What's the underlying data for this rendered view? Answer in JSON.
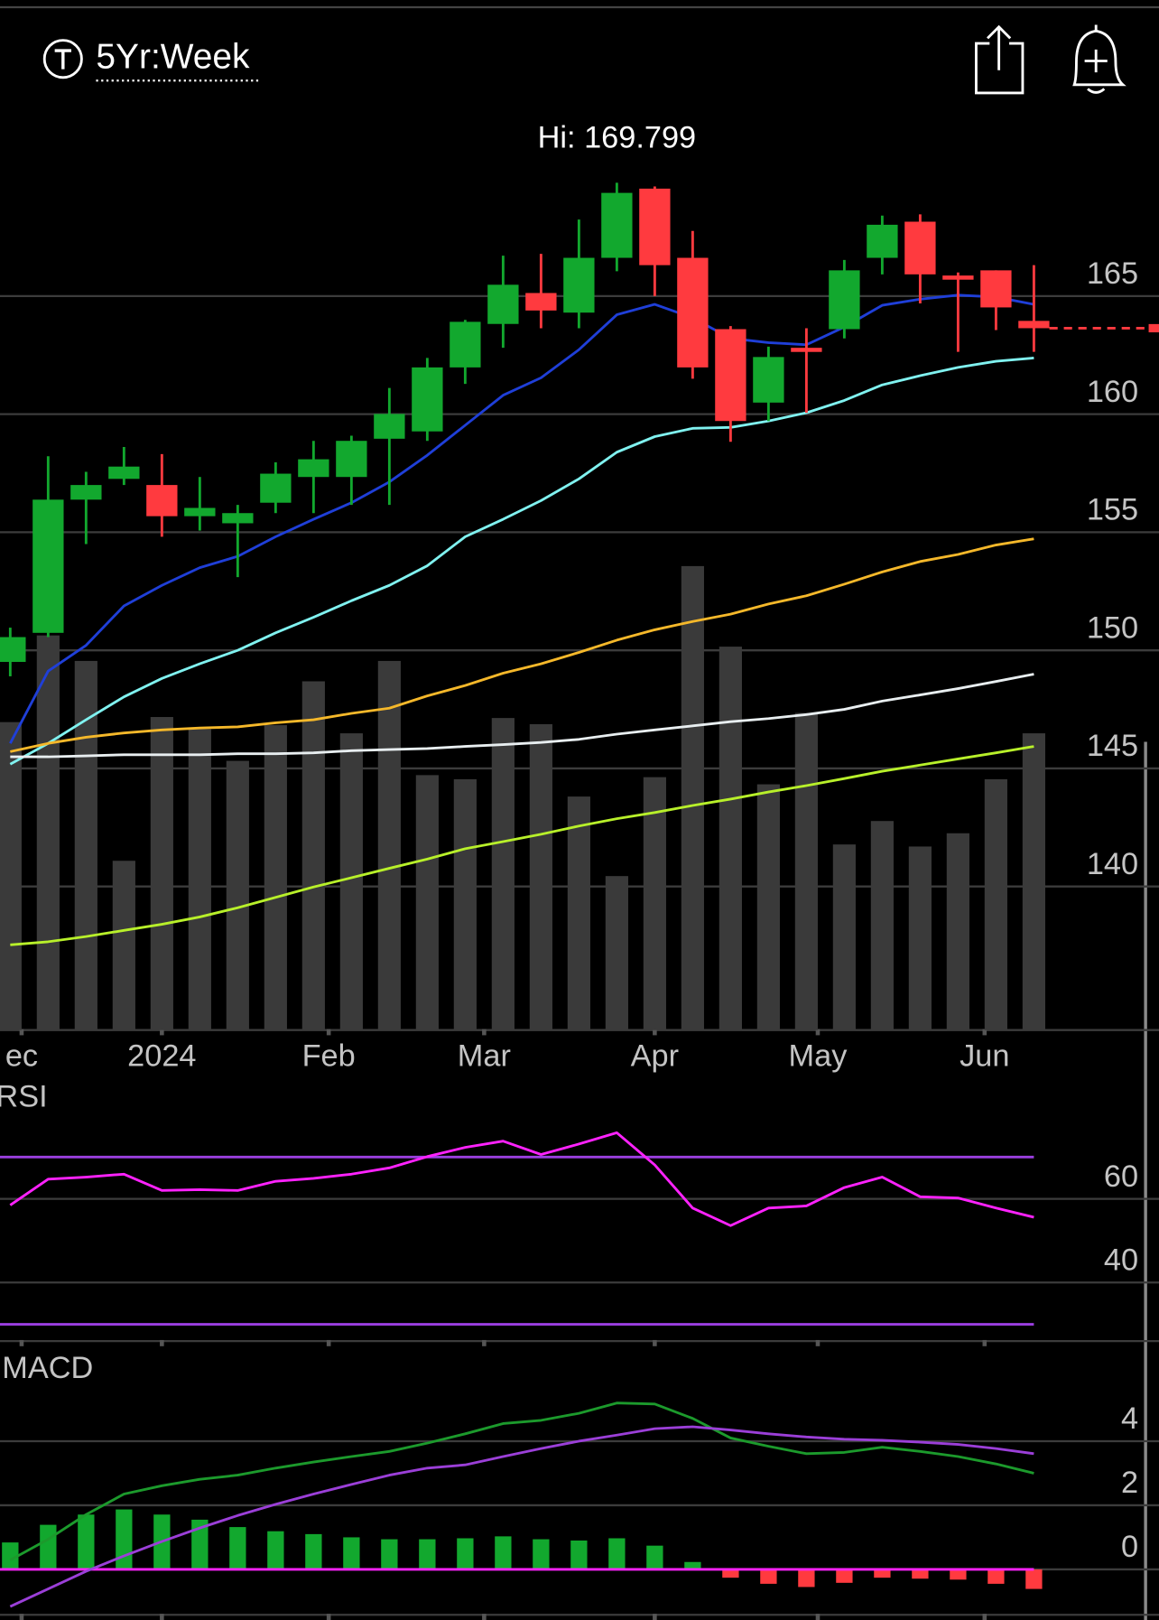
{
  "header": {
    "range": "5Yr:Week"
  },
  "chart_data": [
    {
      "type": "candlestick",
      "annotation": "Hi: 169.799",
      "categories": [
        null,
        null,
        null,
        null,
        null,
        null,
        null,
        null,
        null,
        null,
        null,
        null,
        null,
        null,
        null,
        null,
        null,
        null,
        null,
        null,
        null,
        null,
        null,
        null,
        null,
        null,
        null,
        null
      ],
      "open": [
        149.51,
        150.74,
        156.38,
        157.26,
        157.0,
        155.68,
        155.38,
        156.25,
        157.34,
        157.34,
        158.96,
        159.27,
        161.98,
        163.82,
        165.13,
        164.3,
        166.62,
        169.55,
        166.62,
        163.6,
        160.49,
        162.81,
        163.6,
        166.62,
        168.15,
        165.87,
        166.09,
        163.95
      ],
      "high": [
        150.96,
        158.22,
        157.56,
        158.61,
        158.31,
        157.34,
        156.16,
        157.96,
        158.87,
        159.09,
        161.11,
        162.38,
        163.99,
        166.71,
        166.79,
        168.24,
        169.799,
        169.64,
        167.76,
        163.73,
        162.86,
        163.64,
        166.53,
        168.41,
        168.46,
        166.0,
        166.09,
        166.31
      ],
      "low": [
        148.9,
        150.56,
        154.5,
        157.0,
        154.81,
        155.07,
        153.1,
        155.81,
        155.81,
        156.16,
        156.16,
        158.87,
        161.28,
        162.81,
        163.64,
        163.64,
        166.05,
        165.0,
        161.5,
        158.83,
        159.71,
        160.06,
        163.21,
        165.92,
        164.69,
        162.64,
        163.56,
        162.64
      ],
      "close": [
        150.56,
        156.38,
        157.0,
        157.78,
        155.68,
        156.03,
        155.81,
        157.48,
        158.09,
        158.87,
        160.01,
        161.98,
        163.91,
        165.48,
        164.39,
        166.62,
        169.37,
        166.31,
        161.98,
        159.71,
        162.42,
        162.77,
        166.09,
        168.02,
        165.92,
        165.83,
        164.52,
        163.64
      ],
      "up_color": "#12a82e",
      "down_color": "#ff3a3f",
      "series": [
        {
          "color": "#1f3fd8",
          "values": [
            146.06,
            149.12,
            150.21,
            151.88,
            152.75,
            153.5,
            153.98,
            154.81,
            155.55,
            156.25,
            157.13,
            158.26,
            159.53,
            160.8,
            161.54,
            162.73,
            164.21,
            164.65,
            164.08,
            163.21,
            163.03,
            162.94,
            163.69,
            164.61,
            164.87,
            165.04,
            164.96,
            164.65
          ]
        },
        {
          "color": "#80f2f0",
          "values": [
            145.18,
            146.06,
            147.06,
            148.03,
            148.81,
            149.43,
            150.0,
            150.74,
            151.4,
            152.1,
            152.75,
            153.58,
            154.81,
            155.55,
            156.34,
            157.26,
            158.39,
            159.05,
            159.4,
            159.44,
            159.71,
            160.06,
            160.58,
            161.24,
            161.63,
            161.98,
            162.24,
            162.38
          ]
        },
        {
          "color": "#f5b82a",
          "values": [
            145.71,
            146.06,
            146.32,
            146.5,
            146.63,
            146.71,
            146.76,
            146.93,
            147.06,
            147.33,
            147.55,
            148.07,
            148.51,
            149.03,
            149.43,
            149.91,
            150.43,
            150.87,
            151.22,
            151.53,
            151.96,
            152.31,
            152.8,
            153.32,
            153.76,
            154.06,
            154.46,
            154.72
          ]
        },
        {
          "color": "#e8eef0",
          "values": [
            145.49,
            145.49,
            145.53,
            145.58,
            145.58,
            145.58,
            145.62,
            145.62,
            145.66,
            145.75,
            145.8,
            145.84,
            145.93,
            146.01,
            146.1,
            146.23,
            146.45,
            146.63,
            146.8,
            146.98,
            147.11,
            147.28,
            147.5,
            147.85,
            148.11,
            148.38,
            148.68,
            148.99
          ]
        },
        {
          "color": "#b8f02a",
          "values": [
            137.53,
            137.66,
            137.88,
            138.14,
            138.4,
            138.71,
            139.1,
            139.54,
            139.98,
            140.37,
            140.77,
            141.16,
            141.6,
            141.9,
            142.21,
            142.56,
            142.87,
            143.13,
            143.43,
            143.7,
            144.0,
            144.27,
            144.57,
            144.88,
            145.14,
            145.4,
            145.66,
            145.93
          ]
        }
      ],
      "volume": [
        30.2,
        38.7,
        36.2,
        16.6,
        30.7,
        29.5,
        26.4,
        29.9,
        34.2,
        29.1,
        36.2,
        25.0,
        24.6,
        30.6,
        30.0,
        22.9,
        15.1,
        24.8,
        45.5,
        37.6,
        24.1,
        31.1,
        18.2,
        20.5,
        18.0,
        19.3,
        24.6,
        29.1
      ],
      "volume_color": "#3a3a3a",
      "vlim": [
        0,
        100
      ],
      "xlim": [
        -0.27,
        30.3
      ],
      "xticks": [
        {
          "value": 0.3,
          "label": "ec"
        },
        {
          "value": 4,
          "label": "2024"
        },
        {
          "value": 8.4,
          "label": "Feb"
        },
        {
          "value": 12.5,
          "label": "Mar"
        },
        {
          "value": 17,
          "label": "Apr"
        },
        {
          "value": 21.3,
          "label": "May"
        },
        {
          "value": 25.7,
          "label": "Jun"
        }
      ],
      "ylim": [
        133.92,
        177.1
      ],
      "yticks": [
        165,
        160,
        155,
        150,
        145,
        140
      ],
      "grid": true
    },
    {
      "type": "line",
      "title": "RSI",
      "series": [
        {
          "color": "#ff22ff",
          "values": [
            58.5,
            64.7,
            65.2,
            65.9,
            62.0,
            62.2,
            62.0,
            64.2,
            64.9,
            65.9,
            67.4,
            70.1,
            72.3,
            73.8,
            70.6,
            73.1,
            75.8,
            68.1,
            57.8,
            53.6,
            57.8,
            58.3,
            62.7,
            65.2,
            60.5,
            60.2,
            57.8,
            55.6
          ]
        }
      ],
      "bands": [
        70,
        30
      ],
      "band_color": "#9b3fe0",
      "ylim": [
        26,
        88
      ],
      "yticks": [
        60,
        40
      ],
      "grid": true
    },
    {
      "type": "macd",
      "title": "MACD",
      "series": [
        {
          "color": "#1c9a2c",
          "values": [
            0.29,
            0.94,
            1.71,
            2.35,
            2.61,
            2.81,
            2.94,
            3.16,
            3.35,
            3.52,
            3.68,
            3.94,
            4.23,
            4.55,
            4.65,
            4.87,
            5.19,
            5.16,
            4.71,
            4.1,
            3.84,
            3.61,
            3.65,
            3.81,
            3.68,
            3.52,
            3.29,
            3.0
          ]
        },
        {
          "color": "#9b3fd8",
          "values": [
            -1.16,
            -0.61,
            -0.06,
            0.42,
            0.87,
            1.29,
            1.68,
            2.03,
            2.35,
            2.65,
            2.94,
            3.16,
            3.26,
            3.52,
            3.77,
            4.0,
            4.19,
            4.39,
            4.45,
            4.35,
            4.23,
            4.13,
            4.06,
            4.03,
            3.97,
            3.9,
            3.77,
            3.61
          ]
        }
      ],
      "histogram": [
        0.84,
        1.39,
        1.71,
        1.87,
        1.71,
        1.55,
        1.32,
        1.19,
        1.1,
        1.0,
        0.94,
        0.94,
        0.97,
        1.03,
        0.94,
        0.9,
        0.97,
        0.74,
        0.23,
        -0.26,
        -0.45,
        -0.55,
        -0.42,
        -0.26,
        -0.29,
        -0.32,
        -0.45,
        -0.61
      ],
      "up_color": "#12a82e",
      "down_color": "#ff3a3f",
      "zero_color": "#ff22ff",
      "ylim": [
        -1.58,
        7.06
      ],
      "yticks": [
        4,
        2,
        0
      ],
      "grid": true
    }
  ]
}
